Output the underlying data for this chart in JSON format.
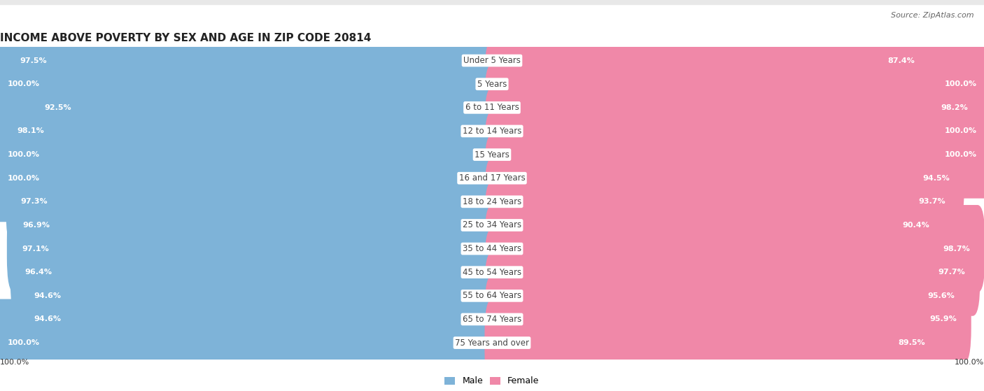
{
  "title": "INCOME ABOVE POVERTY BY SEX AND AGE IN ZIP CODE 20814",
  "source": "Source: ZipAtlas.com",
  "categories": [
    "Under 5 Years",
    "5 Years",
    "6 to 11 Years",
    "12 to 14 Years",
    "15 Years",
    "16 and 17 Years",
    "18 to 24 Years",
    "25 to 34 Years",
    "35 to 44 Years",
    "45 to 54 Years",
    "55 to 64 Years",
    "65 to 74 Years",
    "75 Years and over"
  ],
  "male_values": [
    97.5,
    100.0,
    92.5,
    98.1,
    100.0,
    100.0,
    97.3,
    96.9,
    97.1,
    96.4,
    94.6,
    94.6,
    100.0
  ],
  "female_values": [
    87.4,
    100.0,
    98.2,
    100.0,
    100.0,
    94.5,
    93.7,
    90.4,
    98.7,
    97.7,
    95.6,
    95.9,
    89.5
  ],
  "male_color": "#7eb3d8",
  "female_color": "#f088a8",
  "male_label": "Male",
  "female_label": "Female",
  "background_color": "#e8e8e8",
  "bar_bg_color": "#ffffff",
  "title_fontsize": 11,
  "label_fontsize": 8.5,
  "value_fontsize": 8,
  "source_fontsize": 8,
  "legend_fontsize": 9
}
